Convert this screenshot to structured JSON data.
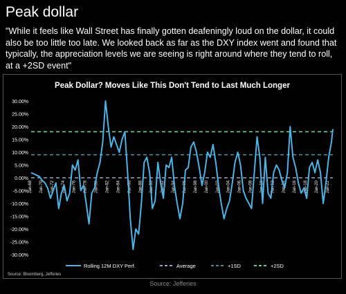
{
  "page": {
    "title": "Peak dollar",
    "quote": "\"While it feels like Wall Street has finally gotten deafeningly loud on the dollar, it could also be too little too late. We looked back as far as the DXY index went and found that typically, the appreciation levels we are seeing is right around where they tend to roll, at a +2SD event\"",
    "footer": "Source: Jefferies"
  },
  "colors": {
    "background": "#000000",
    "series": "#4fb3e6",
    "average": "#9aa6c4",
    "sd1": "#4f8aa0",
    "sd2": "#6fcf9a",
    "grid": "#222222",
    "text": "#ffffff"
  },
  "chart_data": {
    "type": "line",
    "title": "Peak Dollar? Moves Like This Don't Tend to Last Much Longer",
    "source": "Source: Bloomberg, Jefferies",
    "ylim": [
      -30,
      30
    ],
    "y_ticks": [
      "30.00%",
      "25.00%",
      "20.00%",
      "15.00%",
      "10.00%",
      "5.00%",
      "0.00%",
      "-5.00%",
      "-10.00%",
      "-15.00%",
      "-20.00%",
      "-25.00%",
      "-30.00%"
    ],
    "y_tick_values": [
      30,
      25,
      20,
      15,
      10,
      5,
      0,
      -5,
      -10,
      -15,
      -20,
      -25,
      -30
    ],
    "x_range": [
      1968,
      2022.75
    ],
    "x_ticks": [
      "Jan-68",
      "Jan-70",
      "Jan-72",
      "Jan-74",
      "Jan-76",
      "Jan-78",
      "Jan-80",
      "Jan-82",
      "Jan-84",
      "Jan-86",
      "Jan-88",
      "Jan-90",
      "Jan-92",
      "Jan-94",
      "Jan-96",
      "Jan-98",
      "Jan-00",
      "Jan-02",
      "Jan-04",
      "Jan-06",
      "Jan-08",
      "Jan-10",
      "Jan-12",
      "Jan-14",
      "Jan-16",
      "Jan-18",
      "Jan-20",
      "Jan-22"
    ],
    "x_tick_values": [
      1968,
      1970,
      1972,
      1974,
      1976,
      1978,
      1980,
      1982,
      1984,
      1986,
      1988,
      1990,
      1992,
      1994,
      1996,
      1998,
      2000,
      2002,
      2004,
      2006,
      2008,
      2010,
      2012,
      2014,
      2016,
      2018,
      2020,
      2022
    ],
    "reference_lines": [
      {
        "name": "+2SD",
        "value": 18,
        "color": "#6fcf9a"
      },
      {
        "name": "+1SD",
        "value": 9,
        "color": "#4f8aa0"
      },
      {
        "name": "Average",
        "value": 0,
        "color": "#9aa6c4"
      }
    ],
    "legend": [
      "Rolling 12M DXY Perf.",
      "Average",
      "+1SD",
      "+2SD"
    ],
    "series": [
      {
        "name": "Rolling 12M DXY Perf.",
        "x": [
          1968,
          1968.5,
          1969,
          1969.5,
          1970,
          1970.5,
          1971,
          1971.5,
          1972,
          1972.5,
          1973,
          1973.5,
          1974,
          1974.5,
          1975,
          1975.5,
          1976,
          1976.5,
          1977,
          1977.5,
          1978,
          1978.5,
          1979,
          1979.5,
          1980,
          1980.5,
          1981,
          1981.5,
          1982,
          1982.5,
          1983,
          1983.5,
          1984,
          1984.5,
          1985,
          1985.5,
          1986,
          1986.5,
          1987,
          1987.5,
          1988,
          1988.5,
          1989,
          1989.5,
          1990,
          1990.5,
          1991,
          1991.5,
          1992,
          1992.5,
          1993,
          1993.5,
          1994,
          1994.5,
          1995,
          1995.5,
          1996,
          1996.5,
          1997,
          1997.5,
          1998,
          1998.5,
          1999,
          1999.5,
          2000,
          2000.5,
          2001,
          2001.5,
          2002,
          2002.5,
          2003,
          2003.5,
          2004,
          2004.5,
          2005,
          2005.5,
          2006,
          2006.5,
          2007,
          2007.5,
          2008,
          2008.5,
          2009,
          2009.5,
          2010,
          2010.5,
          2011,
          2011.5,
          2012,
          2012.5,
          2013,
          2013.5,
          2014,
          2014.5,
          2015,
          2015.5,
          2016,
          2016.5,
          2017,
          2017.5,
          2018,
          2018.5,
          2019,
          2019.5,
          2020,
          2020.5,
          2021,
          2021.5,
          2022,
          2022.5,
          2022.75
        ],
        "y": [
          2,
          1.5,
          1,
          0.5,
          -1,
          -2,
          -4,
          -8,
          -5,
          -2,
          -12,
          -6,
          -3,
          -9,
          -6,
          5,
          3,
          7,
          -5,
          -3,
          -10,
          -18,
          -6,
          -4,
          2,
          6,
          14,
          30,
          20,
          12,
          16,
          13,
          10,
          15,
          18,
          2,
          -16,
          -28,
          -20,
          -22,
          -10,
          6,
          8,
          2,
          -12,
          -9,
          6,
          -2,
          -8,
          5,
          4,
          8,
          -3,
          -10,
          -16,
          -10,
          3,
          4,
          12,
          14,
          10,
          4,
          -3,
          2,
          10,
          8,
          13,
          6,
          -3,
          -10,
          -16,
          -12,
          -9,
          -2,
          6,
          10,
          5,
          -5,
          -8,
          -10,
          -12,
          2,
          16,
          8,
          -10,
          8,
          -6,
          -8,
          2,
          5,
          3,
          -1,
          -4,
          2,
          20,
          8,
          4,
          -2,
          -6,
          -4,
          -8,
          4,
          6,
          2,
          7,
          2,
          -10,
          -2,
          8,
          14,
          19
        ]
      }
    ]
  }
}
